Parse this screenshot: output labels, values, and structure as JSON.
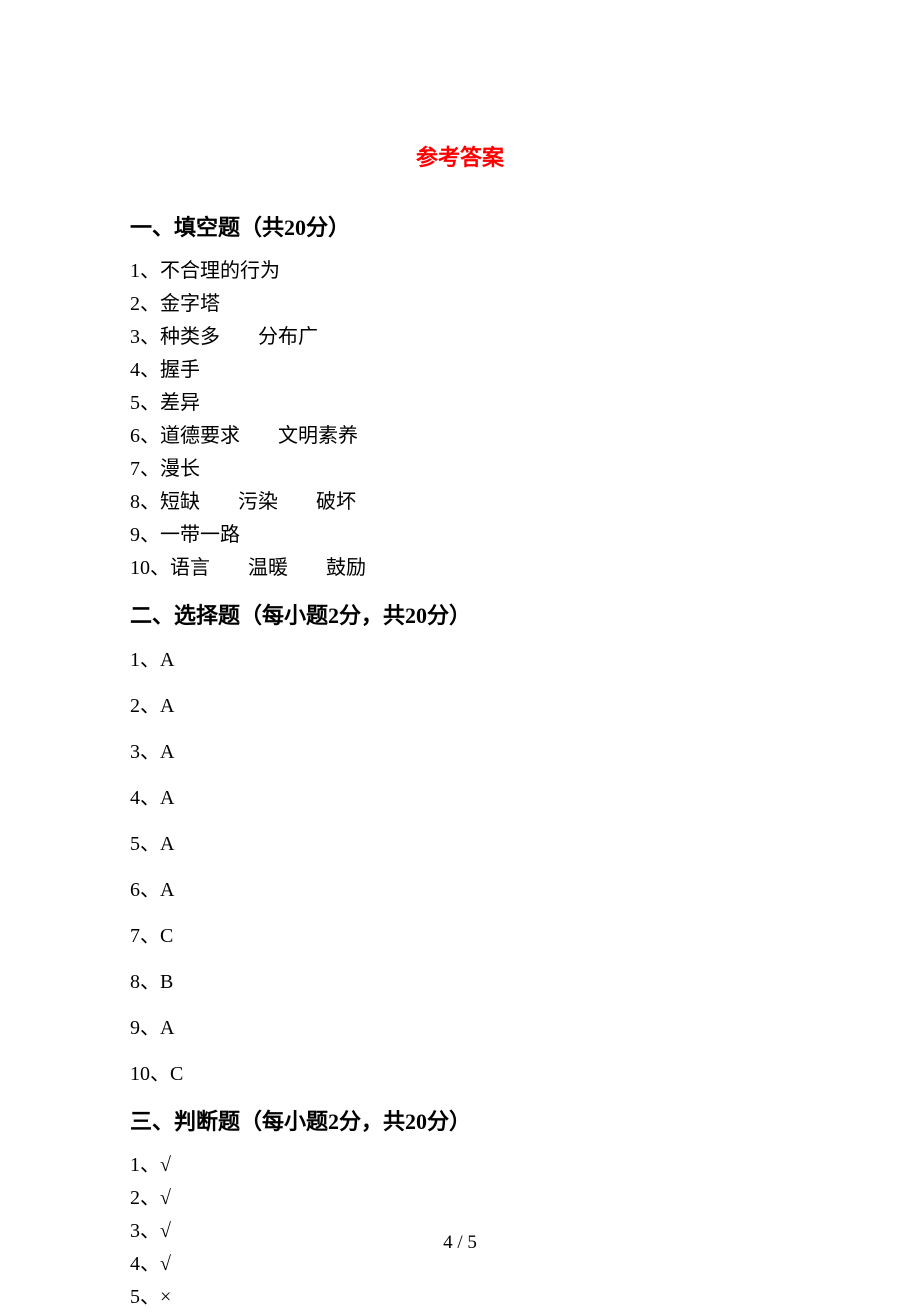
{
  "title": "参考答案",
  "colors": {
    "title_color": "#ff0000",
    "text_color": "#000000",
    "background": "#ffffff"
  },
  "typography": {
    "title_fontsize": 22,
    "heading_fontsize": 22,
    "body_fontsize": 20,
    "font_family": "SimSun"
  },
  "sections": [
    {
      "heading": "一、填空题（共20分）",
      "style": "tight",
      "items": [
        {
          "num": "1、",
          "parts": [
            "不合理的行为"
          ]
        },
        {
          "num": "2、",
          "parts": [
            "金字塔"
          ]
        },
        {
          "num": "3、",
          "parts": [
            "种类多",
            "分布广"
          ]
        },
        {
          "num": "4、",
          "parts": [
            "握手"
          ]
        },
        {
          "num": "5、",
          "parts": [
            "差异"
          ]
        },
        {
          "num": "6、",
          "parts": [
            "道德要求",
            "文明素养"
          ]
        },
        {
          "num": "7、",
          "parts": [
            "漫长"
          ]
        },
        {
          "num": "8、",
          "parts": [
            "短缺",
            "污染",
            "破坏"
          ]
        },
        {
          "num": "9、",
          "parts": [
            "一带一路"
          ]
        },
        {
          "num": "10、",
          "parts": [
            "语言",
            "温暖",
            "鼓励"
          ]
        }
      ]
    },
    {
      "heading": "二、选择题（每小题2分，共20分）",
      "style": "spaced",
      "items": [
        {
          "num": "1、",
          "parts": [
            "A"
          ]
        },
        {
          "num": "2、",
          "parts": [
            "A"
          ]
        },
        {
          "num": "3、",
          "parts": [
            "A"
          ]
        },
        {
          "num": "4、",
          "parts": [
            "A"
          ]
        },
        {
          "num": "5、",
          "parts": [
            "A"
          ]
        },
        {
          "num": "6、",
          "parts": [
            "A"
          ]
        },
        {
          "num": "7、",
          "parts": [
            "C"
          ]
        },
        {
          "num": "8、",
          "parts": [
            "B"
          ]
        },
        {
          "num": "9、",
          "parts": [
            "A"
          ]
        },
        {
          "num": "10、",
          "parts": [
            "C"
          ]
        }
      ]
    },
    {
      "heading": "三、判断题（每小题2分，共20分）",
      "style": "tight",
      "items": [
        {
          "num": "1、",
          "parts": [
            "√"
          ]
        },
        {
          "num": "2、",
          "parts": [
            "√"
          ]
        },
        {
          "num": "3、",
          "parts": [
            "√"
          ]
        },
        {
          "num": "4、",
          "parts": [
            "√"
          ]
        },
        {
          "num": "5、",
          "parts": [
            "×"
          ]
        }
      ]
    }
  ],
  "page_number": "4 / 5"
}
